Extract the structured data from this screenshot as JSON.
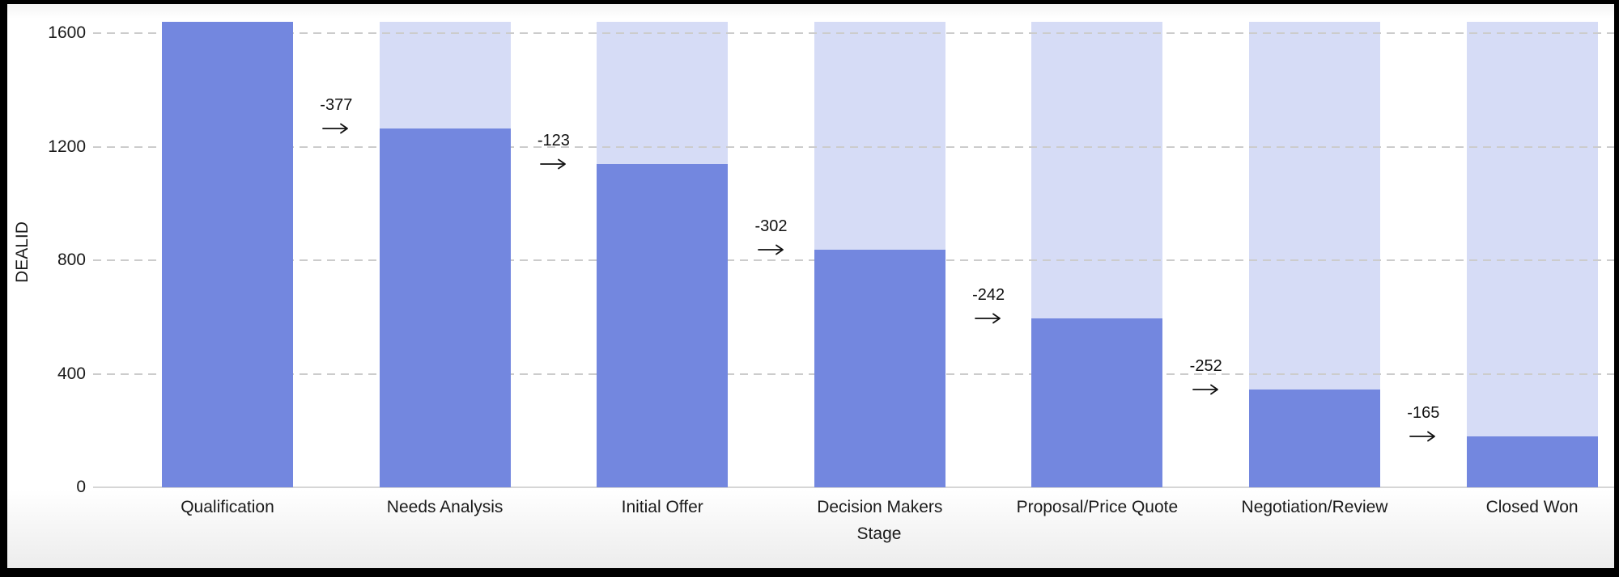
{
  "chart_data": {
    "type": "bar",
    "subtype": "funnel",
    "title": "",
    "xlabel": "Stage",
    "ylabel": "DEALID",
    "categories": [
      "Qualification",
      "Needs Analysis",
      "Initial Offer",
      "Decision Makers",
      "Proposal/Price Quote",
      "Negotiation/Review",
      "Closed Won"
    ],
    "values": [
      1640,
      1263,
      1140,
      838,
      596,
      344,
      179
    ],
    "funnel_total": 1640,
    "drop_labels": [
      "-377",
      "-123",
      "-302",
      "-242",
      "-252",
      "-165"
    ],
    "yticks": [
      "0",
      "400",
      "800",
      "1200",
      "1600"
    ],
    "ytick_values": [
      0,
      400,
      800,
      1200,
      1600
    ],
    "ylim": [
      0,
      1640
    ],
    "grid": "horizontal-dashed",
    "legend": "none",
    "colors": {
      "bar": "#7387DF",
      "ghost_bar": "#D6DCF6",
      "gridline": "#CCCCCC",
      "baseline": "#D6D6D6",
      "text": "#1A1A1A",
      "annotation_arrow": "#111111",
      "frame": "#000000",
      "background": "#FFFFFF"
    }
  }
}
